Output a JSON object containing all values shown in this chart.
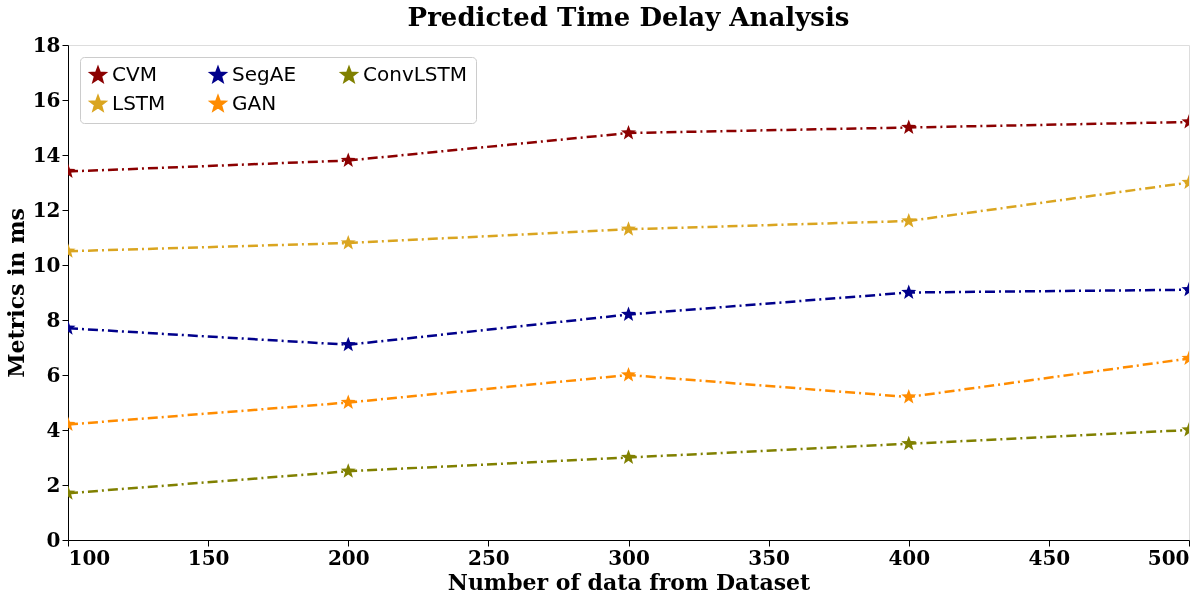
{
  "chart_data": {
    "type": "line",
    "title": "Predicted Time Delay  Analysis",
    "xlabel": "Number of data from Dataset",
    "ylabel": "Metrics in ms",
    "x": [
      100,
      200,
      300,
      400,
      500
    ],
    "series": [
      {
        "name": "CVM",
        "color": "#8b0000",
        "values": [
          13.4,
          13.8,
          14.8,
          15.0,
          15.2
        ]
      },
      {
        "name": "LSTM",
        "color": "#daa520",
        "values": [
          10.5,
          10.8,
          11.3,
          11.6,
          13.0
        ]
      },
      {
        "name": "SegAE",
        "color": "#00008b",
        "values": [
          7.7,
          7.1,
          8.2,
          9.0,
          9.1
        ]
      },
      {
        "name": "GAN",
        "color": "#ff8c00",
        "values": [
          4.2,
          5.0,
          6.0,
          5.2,
          6.6
        ]
      },
      {
        "name": "ConvLSTM",
        "color": "#808000",
        "values": [
          1.7,
          2.5,
          3.0,
          3.5,
          4.0
        ]
      }
    ],
    "xlim": [
      100,
      500
    ],
    "xticks": [
      100,
      150,
      200,
      250,
      300,
      350,
      400,
      450,
      500
    ],
    "ylim": [
      0,
      18
    ],
    "yticks": [
      0,
      2,
      4,
      6,
      8,
      10,
      12,
      14,
      16,
      18
    ],
    "grid": false,
    "legend": "top left",
    "marker": "star",
    "line_style": "dashed"
  }
}
